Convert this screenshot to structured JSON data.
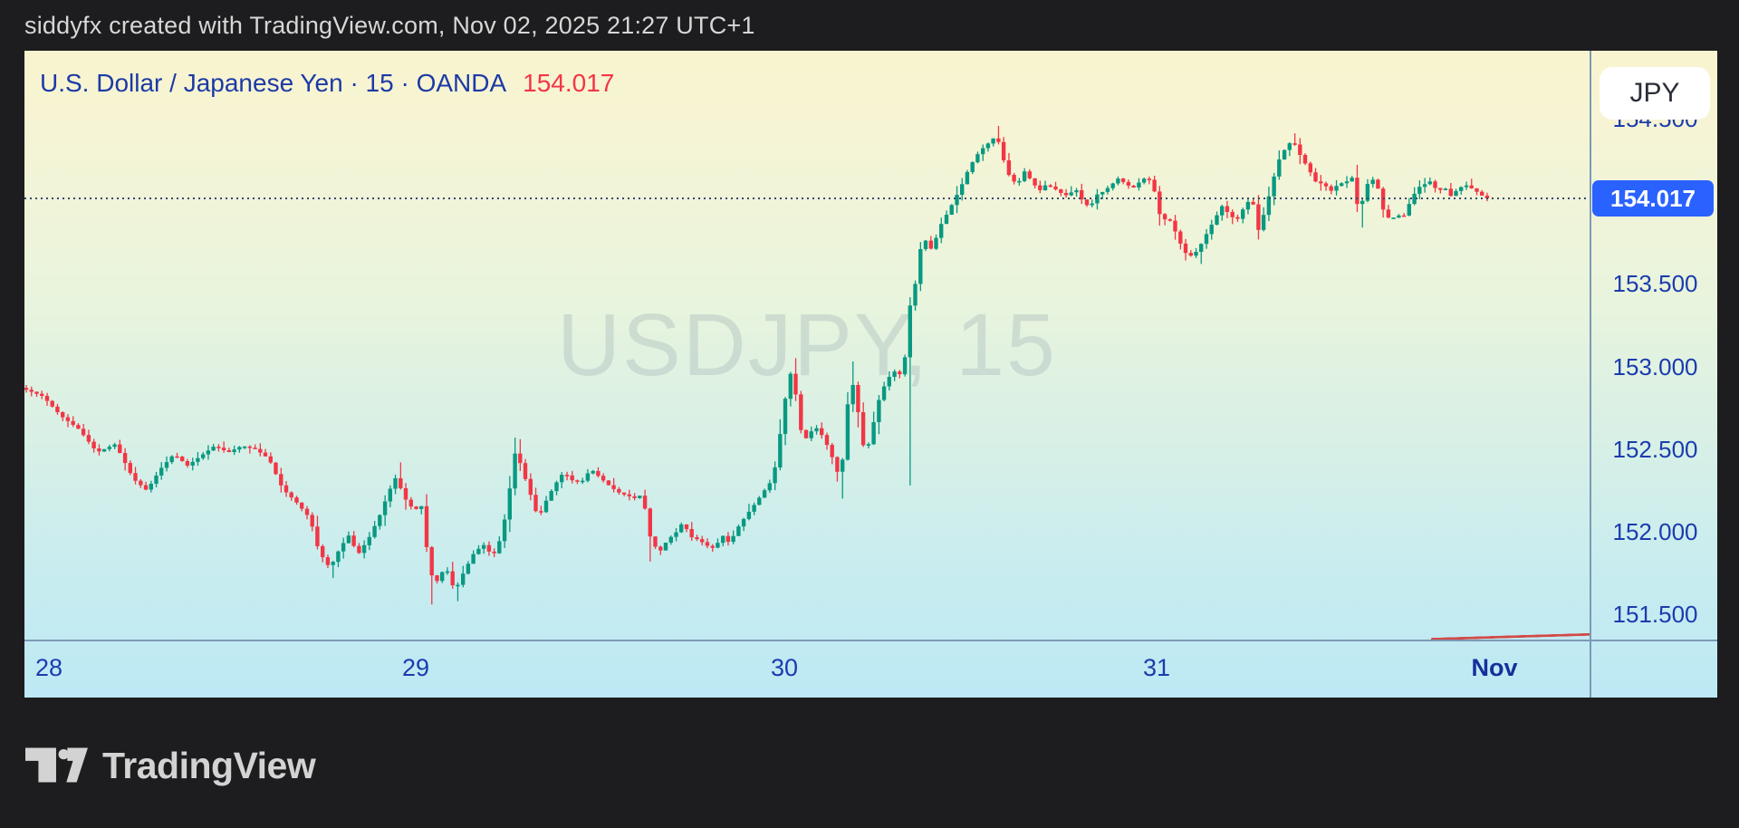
{
  "header": {
    "attribution": "siddyfx created with TradingView.com, Nov 02, 2025 21:27 UTC+1"
  },
  "chart": {
    "title_text": "U.S. Dollar / Japanese Yen · 15 · OANDA",
    "last_price_text": "154.017",
    "currency_button": "JPY",
    "watermark": "USDJPY, 15",
    "badge_text": "154.017"
  },
  "footer": {
    "brand": "TradingView"
  },
  "colors": {
    "up": "#089981",
    "down": "#f23645",
    "badge": "#2962ff",
    "axis_text": "#1b3cae",
    "title_text": "#1c3aa6",
    "title_price": "#f23645",
    "trendline": "#d34a46"
  },
  "chart_data": {
    "type": "candlestick",
    "symbol": "USDJPY",
    "interval": "15",
    "exchange": "OANDA",
    "last_close": 154.017,
    "shown_high": 154.455,
    "shown_low": 151.56,
    "x_axis": {
      "tick_labels": [
        "28",
        "29",
        "30",
        "31",
        "Nov"
      ],
      "bold_labels": [
        "Nov"
      ],
      "note": "days, Oct 28 - Nov 1 2025"
    },
    "y_axis": {
      "tick_labels": [
        "154.500",
        "154.000",
        "153.500",
        "153.000",
        "152.500",
        "152.000",
        "151.500"
      ],
      "visible_range": [
        151.35,
        154.9
      ]
    },
    "seed": 11,
    "candle_count": 282,
    "price_path": [
      [
        -0.067,
        152.87
      ],
      [
        -0.01,
        152.82
      ],
      [
        0.04,
        152.7
      ],
      [
        0.089,
        152.62
      ],
      [
        0.138,
        152.48
      ],
      [
        0.188,
        152.53
      ],
      [
        0.237,
        152.32
      ],
      [
        0.274,
        152.25
      ],
      [
        0.311,
        152.38
      ],
      [
        0.348,
        152.47
      ],
      [
        0.385,
        152.4
      ],
      [
        0.422,
        152.46
      ],
      [
        0.459,
        152.52
      ],
      [
        0.496,
        152.48
      ],
      [
        0.533,
        152.52
      ],
      [
        0.57,
        152.5
      ],
      [
        0.607,
        152.44
      ],
      [
        0.644,
        152.26
      ],
      [
        0.681,
        152.18
      ],
      [
        0.719,
        152.08
      ],
      [
        0.743,
        151.88
      ],
      [
        0.773,
        151.78
      ],
      [
        0.8,
        151.9
      ],
      [
        0.825,
        151.98
      ],
      [
        0.849,
        151.86
      ],
      [
        0.879,
        151.96
      ],
      [
        0.909,
        152.1
      ],
      [
        0.933,
        152.24
      ],
      [
        0.953,
        152.33
      ],
      [
        0.978,
        152.2
      ],
      [
        1.002,
        152.13
      ],
      [
        1.027,
        152.16
      ],
      [
        1.042,
        151.76
      ],
      [
        1.064,
        151.7
      ],
      [
        1.088,
        151.79
      ],
      [
        1.113,
        151.64
      ],
      [
        1.138,
        151.76
      ],
      [
        1.167,
        151.88
      ],
      [
        1.192,
        151.92
      ],
      [
        1.216,
        151.85
      ],
      [
        1.241,
        151.98
      ],
      [
        1.265,
        152.3
      ],
      [
        1.278,
        152.5
      ],
      [
        1.297,
        152.37
      ],
      [
        1.322,
        152.2
      ],
      [
        1.339,
        152.08
      ],
      [
        1.359,
        152.18
      ],
      [
        1.383,
        152.28
      ],
      [
        1.408,
        152.36
      ],
      [
        1.432,
        152.31
      ],
      [
        1.457,
        152.3
      ],
      [
        1.482,
        152.38
      ],
      [
        1.506,
        152.33
      ],
      [
        1.531,
        152.28
      ],
      [
        1.555,
        152.24
      ],
      [
        1.58,
        152.22
      ],
      [
        1.604,
        152.2
      ],
      [
        1.622,
        152.23
      ],
      [
        1.641,
        151.98
      ],
      [
        1.666,
        151.87
      ],
      [
        1.69,
        151.95
      ],
      [
        1.715,
        152.0
      ],
      [
        1.732,
        152.06
      ],
      [
        1.752,
        151.97
      ],
      [
        1.776,
        151.95
      ],
      [
        1.801,
        151.91
      ],
      [
        1.818,
        151.9
      ],
      [
        1.838,
        151.98
      ],
      [
        1.858,
        151.93
      ],
      [
        1.882,
        152.03
      ],
      [
        1.907,
        152.11
      ],
      [
        1.931,
        152.18
      ],
      [
        1.956,
        152.26
      ],
      [
        1.976,
        152.32
      ],
      [
        1.99,
        152.5
      ],
      [
        2.005,
        152.75
      ],
      [
        2.019,
        152.92
      ],
      [
        2.029,
        153.0
      ],
      [
        2.044,
        152.7
      ],
      [
        2.058,
        152.54
      ],
      [
        2.075,
        152.6
      ],
      [
        2.092,
        152.63
      ],
      [
        2.109,
        152.58
      ],
      [
        2.127,
        152.5
      ],
      [
        2.144,
        152.4
      ],
      [
        2.158,
        152.3
      ],
      [
        2.175,
        152.75
      ],
      [
        2.19,
        152.9
      ],
      [
        2.207,
        152.7
      ],
      [
        2.224,
        152.45
      ],
      [
        2.241,
        152.6
      ],
      [
        2.258,
        152.78
      ],
      [
        2.275,
        152.88
      ],
      [
        2.292,
        152.95
      ],
      [
        2.309,
        152.98
      ],
      [
        2.326,
        152.92
      ],
      [
        2.341,
        153.35
      ],
      [
        2.355,
        153.42
      ],
      [
        2.367,
        153.68
      ],
      [
        2.384,
        153.77
      ],
      [
        2.404,
        153.7
      ],
      [
        2.423,
        153.84
      ],
      [
        2.443,
        153.92
      ],
      [
        2.462,
        154.0
      ],
      [
        2.482,
        154.09
      ],
      [
        2.501,
        154.19
      ],
      [
        2.521,
        154.27
      ],
      [
        2.54,
        154.32
      ],
      [
        2.56,
        154.36
      ],
      [
        2.577,
        154.4
      ],
      [
        2.594,
        154.26
      ],
      [
        2.613,
        154.14
      ],
      [
        2.633,
        154.1
      ],
      [
        2.652,
        154.18
      ],
      [
        2.672,
        154.12
      ],
      [
        2.691,
        154.06
      ],
      [
        2.71,
        154.1
      ],
      [
        2.73,
        154.08
      ],
      [
        2.749,
        154.05
      ],
      [
        2.769,
        154.03
      ],
      [
        2.788,
        154.08
      ],
      [
        2.808,
        154.0
      ],
      [
        2.827,
        153.96
      ],
      [
        2.847,
        154.04
      ],
      [
        2.866,
        154.06
      ],
      [
        2.886,
        154.1
      ],
      [
        2.905,
        154.14
      ],
      [
        2.925,
        154.1
      ],
      [
        2.944,
        154.08
      ],
      [
        2.963,
        154.12
      ],
      [
        2.983,
        154.15
      ],
      [
        3.003,
        154.05
      ],
      [
        3.021,
        153.88
      ],
      [
        3.043,
        153.9
      ],
      [
        3.062,
        153.82
      ],
      [
        3.083,
        153.72
      ],
      [
        3.102,
        153.66
      ],
      [
        3.129,
        153.7
      ],
      [
        3.155,
        153.8
      ],
      [
        3.182,
        153.9
      ],
      [
        3.201,
        153.97
      ],
      [
        3.223,
        153.92
      ],
      [
        3.244,
        153.88
      ],
      [
        3.271,
        153.98
      ],
      [
        3.29,
        154.02
      ],
      [
        3.308,
        153.82
      ],
      [
        3.33,
        153.95
      ],
      [
        3.351,
        154.12
      ],
      [
        3.37,
        154.25
      ],
      [
        3.389,
        154.32
      ],
      [
        3.41,
        154.37
      ],
      [
        3.432,
        154.28
      ],
      [
        3.456,
        154.2
      ],
      [
        3.477,
        154.12
      ],
      [
        3.504,
        154.1
      ],
      [
        3.523,
        154.06
      ],
      [
        3.544,
        154.1
      ],
      [
        3.571,
        154.12
      ],
      [
        3.592,
        154.15
      ],
      [
        3.606,
        153.9
      ],
      [
        3.625,
        154.08
      ],
      [
        3.643,
        154.14
      ],
      [
        3.66,
        154.1
      ],
      [
        3.678,
        153.95
      ],
      [
        3.7,
        153.88
      ],
      [
        3.718,
        153.92
      ],
      [
        3.737,
        153.9
      ],
      [
        3.759,
        154.0
      ],
      [
        3.78,
        154.08
      ],
      [
        3.799,
        154.1
      ],
      [
        3.818,
        154.12
      ],
      [
        3.839,
        154.06
      ],
      [
        3.861,
        154.08
      ],
      [
        3.879,
        154.03
      ],
      [
        3.898,
        154.07
      ],
      [
        3.92,
        154.1
      ],
      [
        3.938,
        154.08
      ],
      [
        3.96,
        154.05
      ],
      [
        3.981,
        154.017
      ]
    ],
    "wick_spikes": [
      {
        "d": 0.773,
        "p": 151.72,
        "side": "low"
      },
      {
        "d": 0.953,
        "p": 152.42,
        "side": "high"
      },
      {
        "d": 1.042,
        "p": 151.56,
        "side": "low"
      },
      {
        "d": 1.113,
        "p": 151.58,
        "side": "low"
      },
      {
        "d": 1.278,
        "p": 152.56,
        "side": "high"
      },
      {
        "d": 1.641,
        "p": 151.82,
        "side": "low"
      },
      {
        "d": 2.029,
        "p": 153.05,
        "side": "high"
      },
      {
        "d": 2.158,
        "p": 152.2,
        "side": "low"
      },
      {
        "d": 2.19,
        "p": 153.03,
        "side": "high"
      },
      {
        "d": 2.341,
        "p": 152.28,
        "side": "low"
      },
      {
        "d": 2.577,
        "p": 154.455,
        "side": "high"
      },
      {
        "d": 3.129,
        "p": 153.62,
        "side": "low"
      },
      {
        "d": 3.41,
        "p": 154.41,
        "side": "high"
      },
      {
        "d": 3.606,
        "p": 153.84,
        "side": "low"
      }
    ]
  }
}
